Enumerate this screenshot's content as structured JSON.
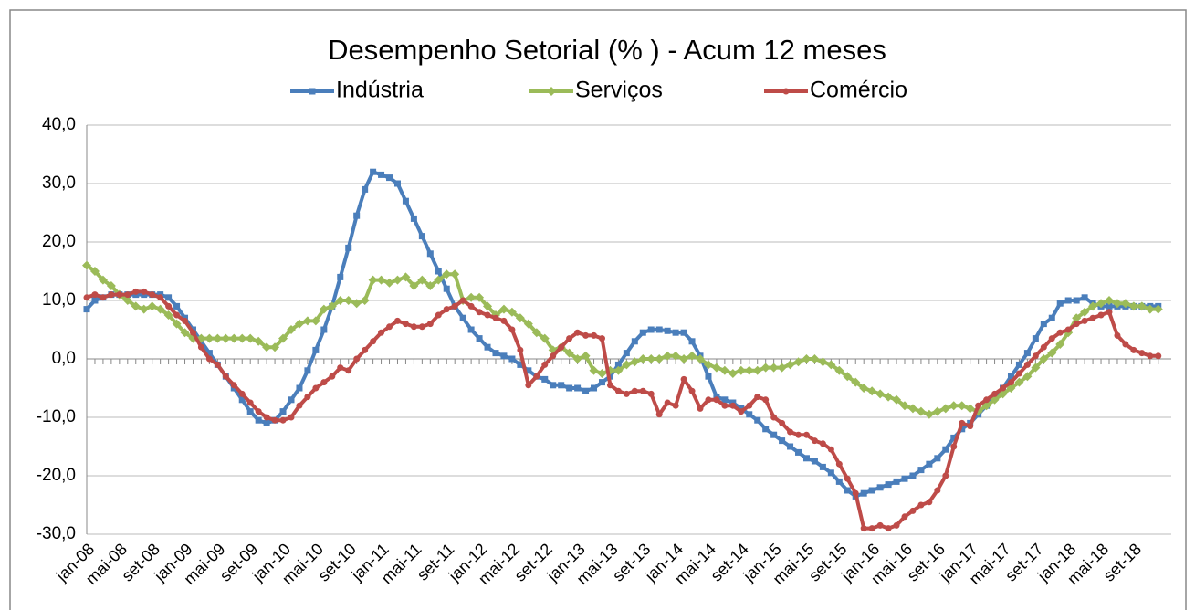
{
  "chart_data": {
    "type": "line",
    "title": "Desempenho Setorial (% ) - Acum 12 meses",
    "categories": [
      "jan-08",
      null,
      null,
      null,
      "mai-08",
      null,
      null,
      null,
      "set-08",
      null,
      null,
      null,
      "jan-09",
      null,
      null,
      null,
      "mai-09",
      null,
      null,
      null,
      "set-09",
      null,
      null,
      null,
      "jan-10",
      null,
      null,
      null,
      "mai-10",
      null,
      null,
      null,
      "set-10",
      null,
      null,
      null,
      "jan-11",
      null,
      null,
      null,
      "mai-11",
      null,
      null,
      null,
      "set-11",
      null,
      null,
      null,
      "jan-12",
      null,
      null,
      null,
      "mai-12",
      null,
      null,
      null,
      "set-12",
      null,
      null,
      null,
      "jan-13",
      null,
      null,
      null,
      "mai-13",
      null,
      null,
      null,
      "set-13",
      null,
      null,
      null,
      "jan-14",
      null,
      null,
      null,
      "mai-14",
      null,
      null,
      null,
      "set-14",
      null,
      null,
      null,
      "jan-15",
      null,
      null,
      null,
      "mai-15",
      null,
      null,
      null,
      "set-15",
      null,
      null,
      null,
      "jan-16",
      null,
      null,
      null,
      "mai-16",
      null,
      null,
      null,
      "set-16",
      null,
      null,
      null,
      "jan-17",
      null,
      null,
      null,
      "mai-17",
      null,
      null,
      null,
      "set-17",
      null,
      null,
      null,
      "jan-18",
      null,
      null,
      null,
      "mai-18",
      null,
      null,
      null,
      "set-18",
      null,
      null,
      null
    ],
    "series": [
      {
        "name": "Indústria",
        "color": "#4a7ebb",
        "marker": "square",
        "values": [
          8.5,
          10,
          10.5,
          11,
          11,
          11,
          11,
          11,
          11,
          11,
          10.5,
          9,
          7,
          5,
          3,
          1,
          -1,
          -3,
          -5,
          -7,
          -9,
          -10.5,
          -11,
          -10.5,
          -9,
          -7,
          -5,
          -2,
          1.5,
          5,
          9,
          14,
          19,
          24.5,
          29,
          32,
          31.5,
          31,
          30,
          27,
          24,
          21,
          18,
          15,
          12,
          9,
          7,
          5,
          3.5,
          2,
          1,
          0.5,
          0,
          -1,
          -2,
          -3,
          -3.5,
          -4.5,
          -4.5,
          -5,
          -5,
          -5.5,
          -5,
          -4,
          -3,
          -1,
          1,
          3,
          4.5,
          5,
          5,
          4.8,
          4.5,
          4.5,
          3,
          0.5,
          -3,
          -6.5,
          -7,
          -7.5,
          -8.5,
          -9.5,
          -10.5,
          -12,
          -13,
          -14,
          -15,
          -16,
          -17,
          -17.5,
          -18.5,
          -19.5,
          -21,
          -22.5,
          -23.5,
          -23,
          -22.5,
          -22,
          -21.5,
          -21,
          -20.5,
          -20,
          -19,
          -18,
          -17,
          -15.5,
          -13.5,
          -12,
          -11,
          -9.5,
          -8,
          -6.5,
          -5,
          -3,
          -1,
          1,
          3.5,
          6,
          7,
          9.5,
          10,
          10,
          10.5,
          9.5,
          9,
          9,
          9,
          9,
          9,
          9,
          9,
          9
        ]
      },
      {
        "name": "Serviços",
        "color": "#9bbb59",
        "marker": "diamond",
        "values": [
          16,
          15,
          13.5,
          12.5,
          11,
          10,
          9,
          8.5,
          9,
          8.5,
          7.5,
          6,
          4.5,
          3.5,
          3.5,
          3.5,
          3.5,
          3.5,
          3.5,
          3.5,
          3.5,
          3,
          2,
          2,
          3.5,
          5,
          6,
          6.5,
          6.5,
          8.5,
          9,
          10,
          10,
          9.5,
          10,
          13.5,
          13.5,
          13,
          13.5,
          14,
          12.5,
          13.5,
          12.5,
          13.5,
          14.5,
          14.5,
          10,
          10.5,
          10.5,
          9,
          7.5,
          8.5,
          8,
          7,
          6,
          4.5,
          3.5,
          1.5,
          2,
          1,
          0,
          0.5,
          -2,
          -2.5,
          -2,
          -2,
          -1,
          -0.5,
          0,
          0,
          0,
          0.5,
          0.5,
          0,
          0.5,
          0,
          -1,
          -1.5,
          -2,
          -2.5,
          -2,
          -2,
          -2,
          -1.5,
          -1.5,
          -1.5,
          -1,
          -0.5,
          0,
          0,
          -0.5,
          -1,
          -2,
          -3,
          -4,
          -5,
          -5.5,
          -6,
          -6.5,
          -7,
          -8,
          -8.5,
          -9,
          -9.5,
          -9,
          -8.5,
          -8,
          -8,
          -8.5,
          -9,
          -8,
          -7,
          -6,
          -5,
          -4,
          -3,
          -1.5,
          0,
          1,
          2.5,
          4.5,
          7,
          8,
          9,
          9.5,
          10,
          9.5,
          9.5,
          9,
          9,
          8.5,
          8.5
        ]
      },
      {
        "name": "Comércio",
        "color": "#be4b48",
        "marker": "circle",
        "values": [
          10.5,
          11,
          10.5,
          11,
          11,
          11,
          11.5,
          11.5,
          11,
          10.5,
          9,
          7.5,
          6.5,
          4.5,
          2,
          0,
          -1,
          -3,
          -4.5,
          -6,
          -7.5,
          -9,
          -10,
          -10.5,
          -10.5,
          -10,
          -8,
          -6.5,
          -5,
          -4,
          -3,
          -1.5,
          -2,
          0,
          1.5,
          3,
          4.5,
          5.5,
          6.5,
          6,
          5.5,
          5.5,
          6,
          7.5,
          8.5,
          9,
          10,
          9,
          8,
          7.5,
          7,
          6.5,
          5,
          1.5,
          -4.5,
          -3,
          -1,
          0.5,
          2,
          3.5,
          4.5,
          4,
          4,
          3.5,
          -4.5,
          -5.5,
          -6,
          -5.5,
          -5.5,
          -6,
          -9.5,
          -7.5,
          -8,
          -3.5,
          -5.5,
          -8.5,
          -7,
          -7,
          -8,
          -8,
          -9,
          -8,
          -6.5,
          -7,
          -10,
          -11,
          -12.5,
          -13,
          -13,
          -14,
          -14.5,
          -15.5,
          -18,
          -20.5,
          -23,
          -29,
          -29,
          -28.5,
          -29,
          -28.5,
          -27,
          -26,
          -25,
          -24.5,
          -22.5,
          -20,
          -15,
          -11,
          -11.5,
          -8,
          -7,
          -6,
          -5,
          -4,
          -2.5,
          -1,
          0.5,
          2,
          3.5,
          4.5,
          5,
          6,
          6.5,
          7,
          7.5,
          8,
          4,
          2.5,
          1.5,
          1,
          0.5,
          0.5
        ]
      }
    ],
    "ylim": [
      -30,
      40
    ],
    "yticks": [
      {
        "value": -30,
        "label": "-30,0"
      },
      {
        "value": -20,
        "label": "-20,0"
      },
      {
        "value": -10,
        "label": "-10,0"
      },
      {
        "value": 0,
        "label": "0,0"
      },
      {
        "value": 10,
        "label": "10,0"
      },
      {
        "value": 20,
        "label": "20,0"
      },
      {
        "value": 30,
        "label": "30,0"
      },
      {
        "value": 40,
        "label": "40,0"
      }
    ],
    "grid": true,
    "legend": "top"
  }
}
